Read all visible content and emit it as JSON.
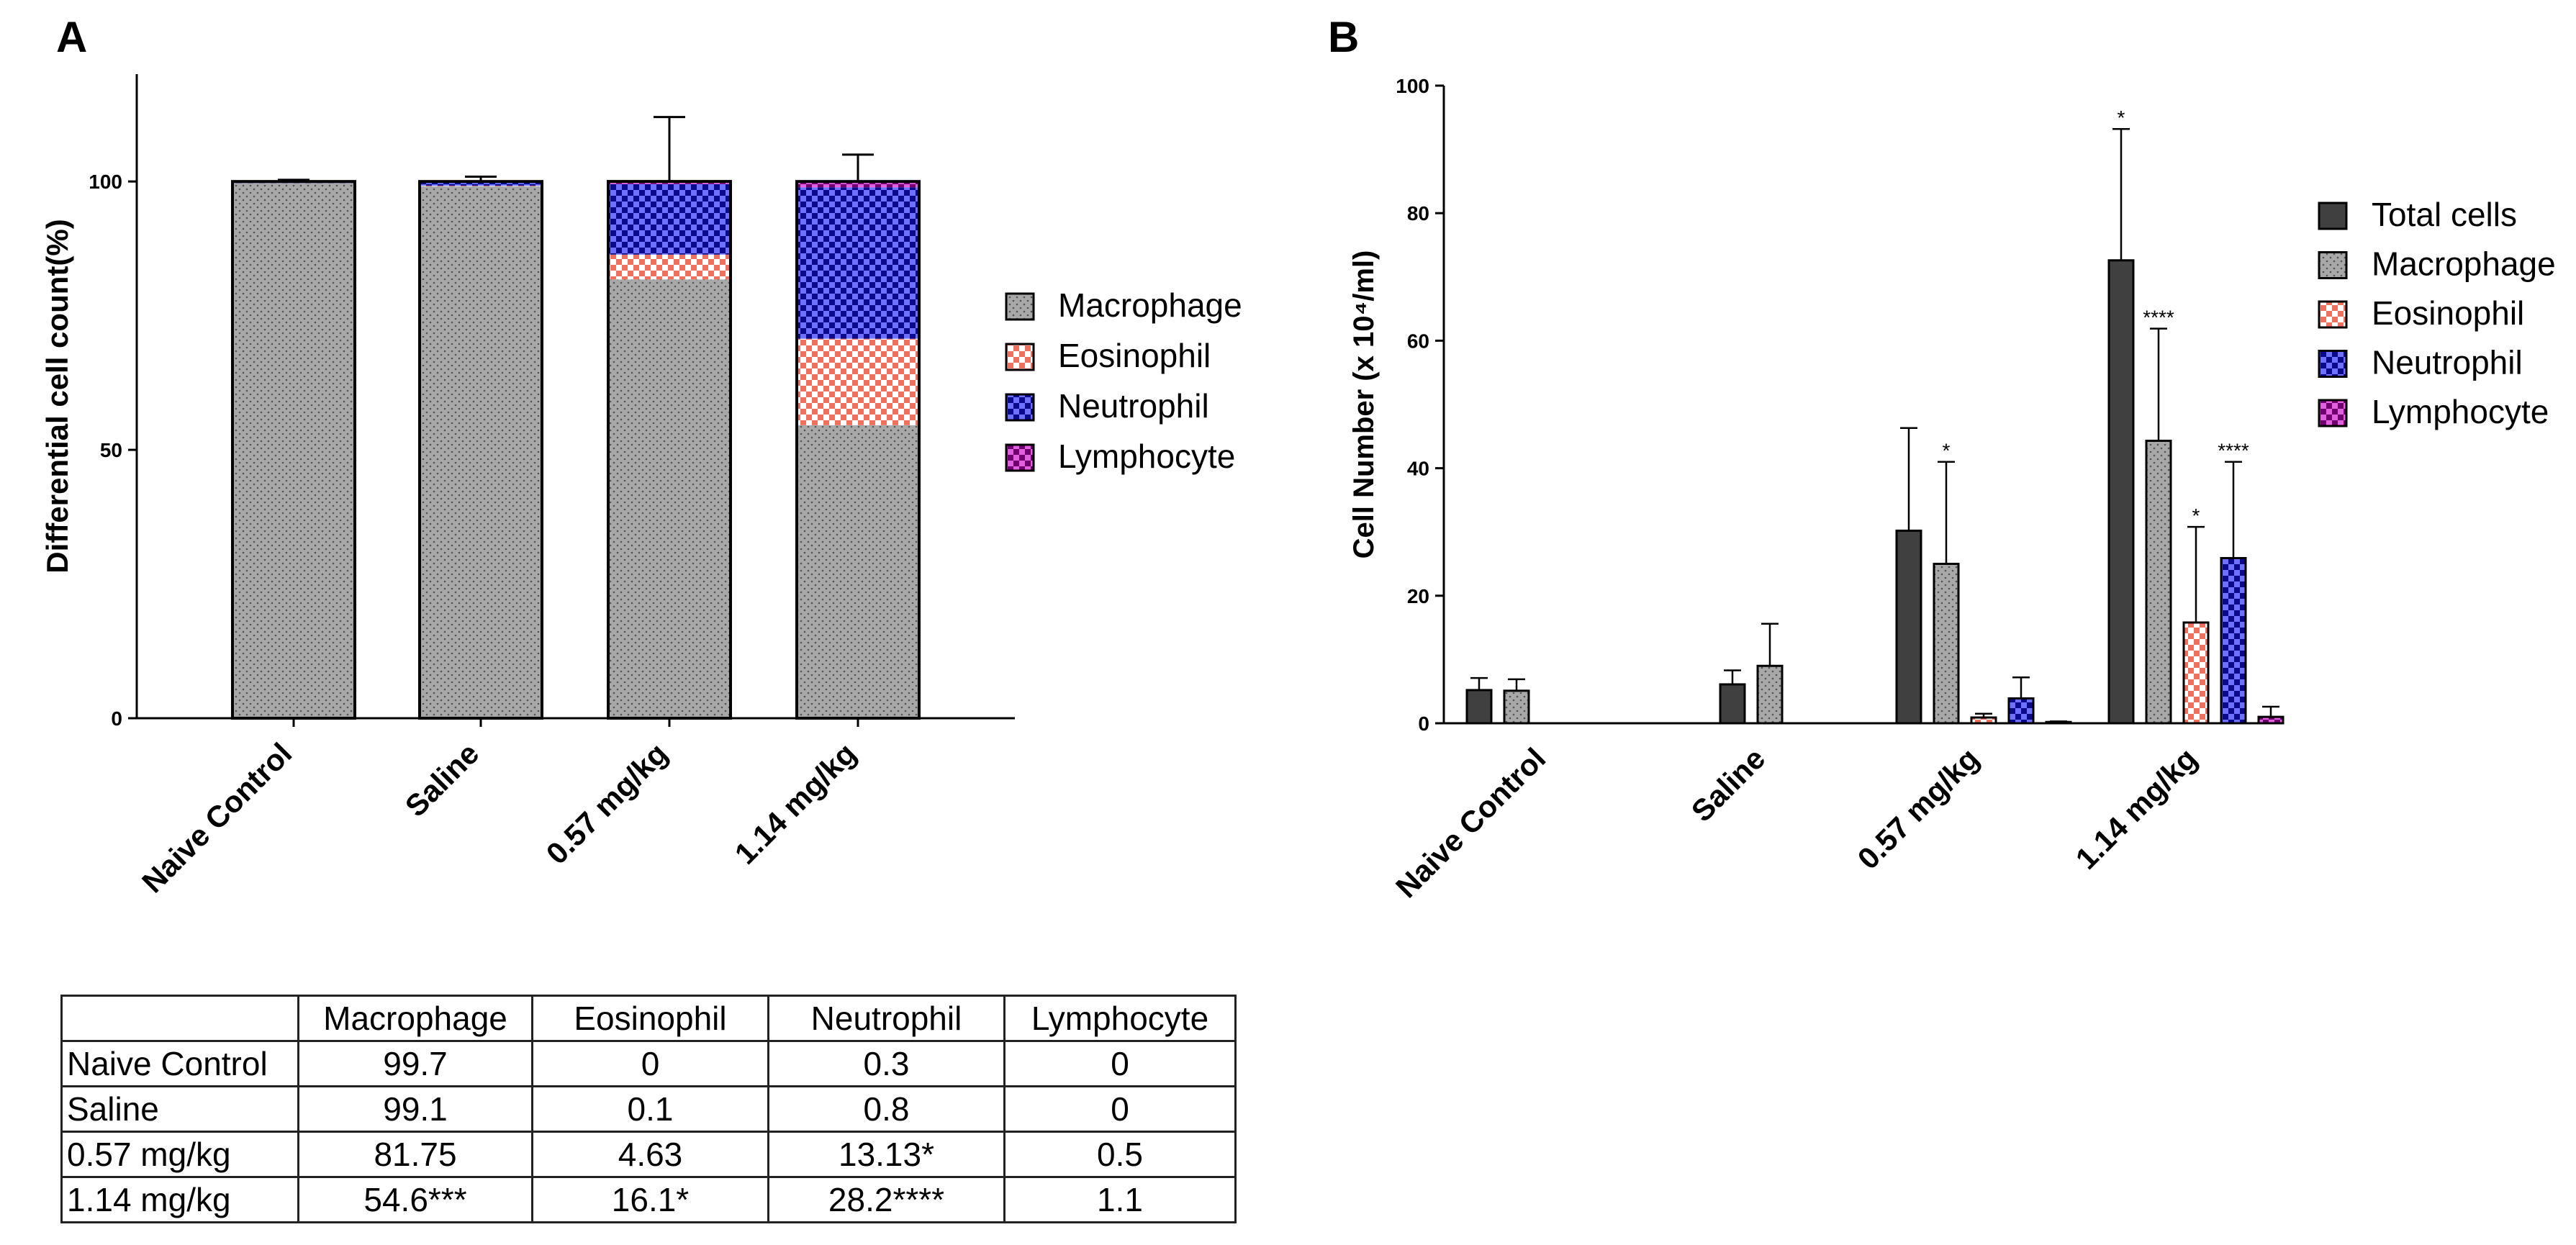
{
  "chart_data": [
    {
      "panel": "A",
      "type": "bar",
      "stacked": true,
      "title": "",
      "xlabel": "",
      "ylabel": "Differential cell count(%)",
      "ylim": [
        0,
        120
      ],
      "yticks": [
        "0",
        "50",
        "100"
      ],
      "categories": [
        "Naive Control",
        "Saline",
        "0.57 mg/kg",
        "1.14 mg/kg"
      ],
      "series": [
        {
          "name": "Macrophage",
          "values": [
            99.7,
            99.1,
            81.75,
            54.6
          ],
          "color": "#a8a8a8",
          "pattern": "dots"
        },
        {
          "name": "Eosinophil",
          "values": [
            0,
            0.1,
            4.63,
            16.1
          ],
          "color": "#f08070",
          "pattern": "checker"
        },
        {
          "name": "Neutrophil",
          "values": [
            0.3,
            0.8,
            13.13,
            28.2
          ],
          "color": "#3030d8",
          "pattern": "checker"
        },
        {
          "name": "Lymphocyte",
          "values": [
            0,
            0,
            0.5,
            1.1
          ],
          "color": "#b020b0",
          "pattern": "checker"
        }
      ],
      "error_bar_tops": [
        100.3,
        100.9,
        112,
        105
      ],
      "legend": "right"
    },
    {
      "panel": "B",
      "type": "bar",
      "stacked": false,
      "title": "",
      "xlabel": "",
      "ylabel": "Cell Number (x 10⁴/ml)",
      "ylim": [
        0,
        100
      ],
      "yticks": [
        "0",
        "20",
        "40",
        "60",
        "80",
        "100"
      ],
      "categories": [
        "Naive Control",
        "Saline",
        "0.57 mg/kg",
        "1.14 mg/kg"
      ],
      "series": [
        {
          "name": "Total cells",
          "values": [
            5.2,
            6.1,
            30.2,
            72.6
          ],
          "errors": [
            1.9,
            2.2,
            16.1,
            20.6
          ],
          "significance": [
            "",
            "",
            "",
            "*"
          ],
          "color": "#404040",
          "pattern": "none"
        },
        {
          "name": "Macrophage",
          "values": [
            5.1,
            9.0,
            25.0,
            44.3
          ],
          "errors": [
            1.8,
            6.6,
            16.0,
            17.6
          ],
          "significance": [
            "",
            "",
            "*",
            "****"
          ],
          "color": "#a8a8a8",
          "pattern": "dots"
        },
        {
          "name": "Eosinophil",
          "values": [
            0,
            0,
            0.9,
            15.8
          ],
          "errors": [
            0,
            0,
            0.6,
            15.0
          ],
          "significance": [
            "",
            "",
            "",
            "*"
          ],
          "color": "#f08070",
          "pattern": "checker"
        },
        {
          "name": "Neutrophil",
          "values": [
            0,
            0,
            3.9,
            25.9
          ],
          "errors": [
            0,
            0,
            3.3,
            15.1
          ],
          "significance": [
            "",
            "",
            "",
            "****"
          ],
          "color": "#3030d8",
          "pattern": "checker"
        },
        {
          "name": "Lymphocyte",
          "values": [
            0,
            0,
            0.2,
            1.0
          ],
          "errors": [
            0,
            0,
            0.1,
            1.6
          ],
          "significance": [
            "",
            "",
            "",
            ""
          ],
          "color": "#b020b0",
          "pattern": "checker"
        }
      ],
      "legend": "top-right"
    }
  ],
  "table": {
    "headers": [
      "",
      "Macrophage",
      "Eosinophil",
      "Neutrophil",
      "Lymphocyte"
    ],
    "rows": [
      [
        "Naive Control",
        "99.7",
        "0",
        "0.3",
        "0"
      ],
      [
        "Saline",
        "99.1",
        "0.1",
        "0.8",
        "0"
      ],
      [
        "0.57 mg/kg",
        "81.75",
        "4.63",
        "13.13*",
        "0.5"
      ],
      [
        "1.14 mg/kg",
        "54.6***",
        "16.1*",
        "28.2****",
        "1.1"
      ]
    ]
  }
}
